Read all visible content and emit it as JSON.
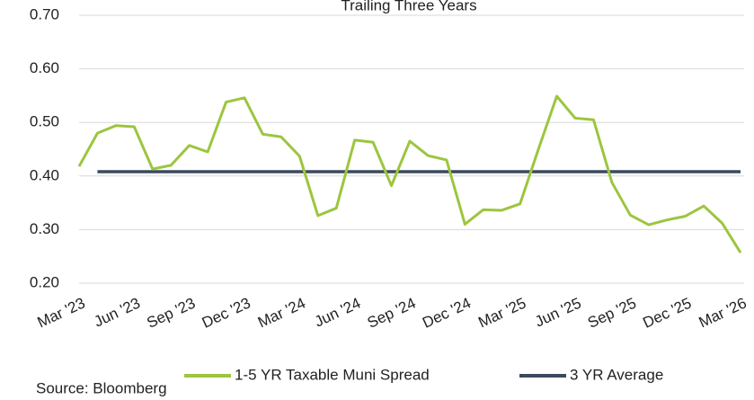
{
  "chart_data": {
    "type": "line",
    "title": "Trailing Three Years",
    "categories": [
      "Mar '23",
      null,
      null,
      "Jun '23",
      null,
      null,
      "Sep '23",
      null,
      null,
      "Dec '23",
      null,
      null,
      "Mar '24",
      null,
      null,
      "Jun '24",
      null,
      null,
      "Sep '24",
      null,
      null,
      "Dec '24",
      null,
      null,
      "Mar '25",
      null,
      null,
      "Jun '25",
      null,
      null,
      "Sep '25",
      null,
      null,
      "Dec '25",
      null,
      null,
      "Mar '26"
    ],
    "series": [
      {
        "name": "1-5 YR Taxable Muni Spread",
        "color": "#9dc53f",
        "values": [
          0.418,
          0.48,
          0.494,
          0.492,
          0.413,
          0.42,
          0.457,
          0.445,
          0.538,
          0.546,
          0.478,
          0.473,
          0.437,
          0.326,
          0.34,
          0.467,
          0.463,
          0.382,
          0.465,
          0.438,
          0.43,
          0.31,
          0.337,
          0.336,
          0.348,
          0.45,
          0.549,
          0.508,
          0.505,
          0.388,
          0.327,
          0.309,
          0.318,
          0.325,
          0.344,
          0.312,
          0.257
        ]
      },
      {
        "name": "3 YR Average",
        "color": "#3b4a5c",
        "values": [
          null,
          0.408,
          0.408,
          0.408,
          0.408,
          0.408,
          0.408,
          0.408,
          0.408,
          0.408,
          0.408,
          0.408,
          0.408,
          0.408,
          0.408,
          0.408,
          0.408,
          0.408,
          0.408,
          0.408,
          0.408,
          0.408,
          0.408,
          0.408,
          0.408,
          0.408,
          0.408,
          0.408,
          0.408,
          0.408,
          0.408,
          0.408,
          0.408,
          0.408,
          0.408,
          0.408,
          0.408
        ]
      }
    ],
    "ylim": [
      0.2,
      0.7
    ],
    "yticks": [
      {
        "value": 0.2,
        "label": "0.20"
      },
      {
        "value": 0.3,
        "label": "0.30"
      },
      {
        "value": 0.4,
        "label": "0.40"
      },
      {
        "value": 0.5,
        "label": "0.50"
      },
      {
        "value": 0.6,
        "label": "0.60"
      },
      {
        "value": 0.7,
        "label": "0.70"
      }
    ],
    "grid": true,
    "legend": "bottom",
    "source": "Source: Bloomberg"
  }
}
